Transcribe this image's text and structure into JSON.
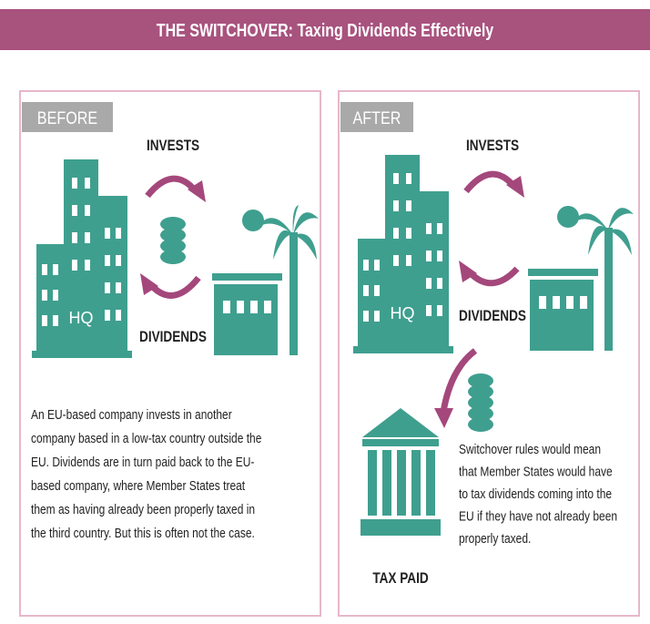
{
  "header": {
    "title": "THE SWITCHOVER: Taxing Dividends Effectively"
  },
  "panels": [
    {
      "label": "BEFORE",
      "invests": "INVESTS",
      "dividends": "DIVIDENDS",
      "hq": "HQ",
      "text": [
        "An EU-based company invests in another",
        "company based in a low-tax country outside the",
        "EU. Dividends are in turn paid back to the EU-",
        "based company, where Member States treat",
        "them as having already been properly taxed in",
        "the third country. But this is often not the case."
      ]
    },
    {
      "label": "AFTER",
      "invests": "INVESTS",
      "dividends": "DIVIDENDS",
      "hq": "HQ",
      "tax_paid": "TAX PAID",
      "text": [
        "Switchover rules would mean",
        "that Member States would have",
        "to tax dividends coming into the",
        "EU if they have not already been",
        "properly taxed."
      ]
    }
  ]
}
